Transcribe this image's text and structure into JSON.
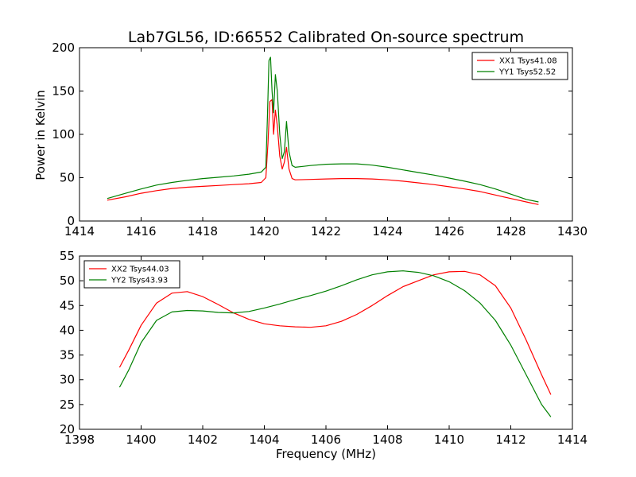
{
  "chart_data": [
    {
      "type": "line",
      "title": "Lab7GL56, ID:66552 Calibrated On-source spectrum",
      "xlabel": "",
      "ylabel": "Power in Kelvin",
      "xlim": [
        1414,
        1430
      ],
      "ylim": [
        0,
        200
      ],
      "x_ticks": [
        1414,
        1416,
        1418,
        1420,
        1422,
        1424,
        1426,
        1428,
        1430
      ],
      "y_ticks": [
        0,
        50,
        100,
        150,
        200
      ],
      "legend_position": "top-right",
      "grid": false,
      "series": [
        {
          "name": "XX1 Tsys41.08",
          "color": "#ff0000",
          "points": [
            [
              1414.9,
              24
            ],
            [
              1415.5,
              28
            ],
            [
              1416.0,
              32
            ],
            [
              1416.5,
              35
            ],
            [
              1417.0,
              37.5
            ],
            [
              1417.5,
              39
            ],
            [
              1418.0,
              40
            ],
            [
              1418.5,
              41
            ],
            [
              1419.0,
              42
            ],
            [
              1419.5,
              43
            ],
            [
              1419.9,
              44.5
            ],
            [
              1420.05,
              50
            ],
            [
              1420.12,
              90
            ],
            [
              1420.18,
              138
            ],
            [
              1420.25,
              140
            ],
            [
              1420.3,
              100
            ],
            [
              1420.36,
              128
            ],
            [
              1420.42,
              110
            ],
            [
              1420.5,
              75
            ],
            [
              1420.58,
              60
            ],
            [
              1420.65,
              68
            ],
            [
              1420.72,
              85
            ],
            [
              1420.8,
              60
            ],
            [
              1420.9,
              49
            ],
            [
              1421.0,
              47.5
            ],
            [
              1421.5,
              48
            ],
            [
              1422.0,
              48.5
            ],
            [
              1422.5,
              49
            ],
            [
              1423.0,
              49
            ],
            [
              1423.5,
              48.5
            ],
            [
              1424.0,
              47.5
            ],
            [
              1424.5,
              46
            ],
            [
              1425.0,
              44
            ],
            [
              1425.5,
              42
            ],
            [
              1426.0,
              39.5
            ],
            [
              1426.5,
              37
            ],
            [
              1427.0,
              34
            ],
            [
              1427.5,
              30
            ],
            [
              1428.0,
              26
            ],
            [
              1428.5,
              22
            ],
            [
              1428.9,
              19
            ]
          ]
        },
        {
          "name": "YY1 Tsys52.52",
          "color": "#008000",
          "points": [
            [
              1414.9,
              26
            ],
            [
              1415.5,
              32
            ],
            [
              1416.0,
              37
            ],
            [
              1416.5,
              41.5
            ],
            [
              1417.0,
              44.5
            ],
            [
              1417.5,
              47
            ],
            [
              1418.0,
              49
            ],
            [
              1418.5,
              50.5
            ],
            [
              1419.0,
              52
            ],
            [
              1419.5,
              54
            ],
            [
              1419.9,
              56.5
            ],
            [
              1420.05,
              62
            ],
            [
              1420.1,
              120
            ],
            [
              1420.15,
              185
            ],
            [
              1420.2,
              189
            ],
            [
              1420.25,
              150
            ],
            [
              1420.3,
              125
            ],
            [
              1420.36,
              169
            ],
            [
              1420.42,
              150
            ],
            [
              1420.5,
              100
            ],
            [
              1420.58,
              72
            ],
            [
              1420.65,
              80
            ],
            [
              1420.72,
              115
            ],
            [
              1420.8,
              80
            ],
            [
              1420.9,
              64
            ],
            [
              1421.0,
              62
            ],
            [
              1421.5,
              64
            ],
            [
              1422.0,
              65.5
            ],
            [
              1422.5,
              66
            ],
            [
              1423.0,
              66
            ],
            [
              1423.5,
              64.5
            ],
            [
              1424.0,
              62
            ],
            [
              1424.5,
              59
            ],
            [
              1425.0,
              56
            ],
            [
              1425.5,
              53
            ],
            [
              1426.0,
              49.5
            ],
            [
              1426.5,
              46
            ],
            [
              1427.0,
              42
            ],
            [
              1427.5,
              37
            ],
            [
              1428.0,
              31
            ],
            [
              1428.5,
              25
            ],
            [
              1428.9,
              22
            ]
          ]
        }
      ]
    },
    {
      "type": "line",
      "title": "",
      "xlabel": "Frequency (MHz)",
      "ylabel": "",
      "xlim": [
        1398,
        1414
      ],
      "ylim": [
        20,
        55
      ],
      "x_ticks": [
        1398,
        1400,
        1402,
        1404,
        1406,
        1408,
        1410,
        1412,
        1414
      ],
      "y_ticks": [
        20,
        25,
        30,
        35,
        40,
        45,
        50,
        55
      ],
      "legend_position": "top-left",
      "grid": false,
      "series": [
        {
          "name": "XX2 Tsys44.03",
          "color": "#ff0000",
          "points": [
            [
              1399.3,
              32.5
            ],
            [
              1399.6,
              36
            ],
            [
              1400.0,
              41
            ],
            [
              1400.5,
              45.5
            ],
            [
              1401.0,
              47.5
            ],
            [
              1401.5,
              47.8
            ],
            [
              1402.0,
              46.8
            ],
            [
              1402.5,
              45.2
            ],
            [
              1403.0,
              43.5
            ],
            [
              1403.5,
              42.2
            ],
            [
              1404.0,
              41.3
            ],
            [
              1404.5,
              40.9
            ],
            [
              1405.0,
              40.7
            ],
            [
              1405.5,
              40.6
            ],
            [
              1406.0,
              40.9
            ],
            [
              1406.5,
              41.8
            ],
            [
              1407.0,
              43.2
            ],
            [
              1407.5,
              45
            ],
            [
              1408.0,
              47
            ],
            [
              1408.5,
              48.8
            ],
            [
              1409.0,
              50
            ],
            [
              1409.5,
              51.2
            ],
            [
              1410.0,
              51.8
            ],
            [
              1410.5,
              51.9
            ],
            [
              1411.0,
              51.2
            ],
            [
              1411.5,
              49
            ],
            [
              1412.0,
              44.5
            ],
            [
              1412.5,
              38
            ],
            [
              1413.0,
              31
            ],
            [
              1413.3,
              27
            ]
          ]
        },
        {
          "name": "YY2 Tsys43.93",
          "color": "#008000",
          "points": [
            [
              1399.3,
              28.5
            ],
            [
              1399.6,
              32
            ],
            [
              1400.0,
              37.5
            ],
            [
              1400.5,
              42
            ],
            [
              1401.0,
              43.7
            ],
            [
              1401.5,
              44
            ],
            [
              1402.0,
              43.9
            ],
            [
              1402.5,
              43.6
            ],
            [
              1403.0,
              43.5
            ],
            [
              1403.5,
              43.8
            ],
            [
              1404.0,
              44.5
            ],
            [
              1404.5,
              45.3
            ],
            [
              1405.0,
              46.2
            ],
            [
              1405.5,
              47
            ],
            [
              1406.0,
              47.9
            ],
            [
              1406.5,
              49
            ],
            [
              1407.0,
              50.2
            ],
            [
              1407.5,
              51.2
            ],
            [
              1408.0,
              51.8
            ],
            [
              1408.5,
              52
            ],
            [
              1409.0,
              51.7
            ],
            [
              1409.5,
              51
            ],
            [
              1410.0,
              49.8
            ],
            [
              1410.5,
              48
            ],
            [
              1411.0,
              45.5
            ],
            [
              1411.5,
              42
            ],
            [
              1412.0,
              37
            ],
            [
              1412.5,
              31
            ],
            [
              1413.0,
              25
            ],
            [
              1413.3,
              22.5
            ]
          ]
        }
      ]
    }
  ]
}
